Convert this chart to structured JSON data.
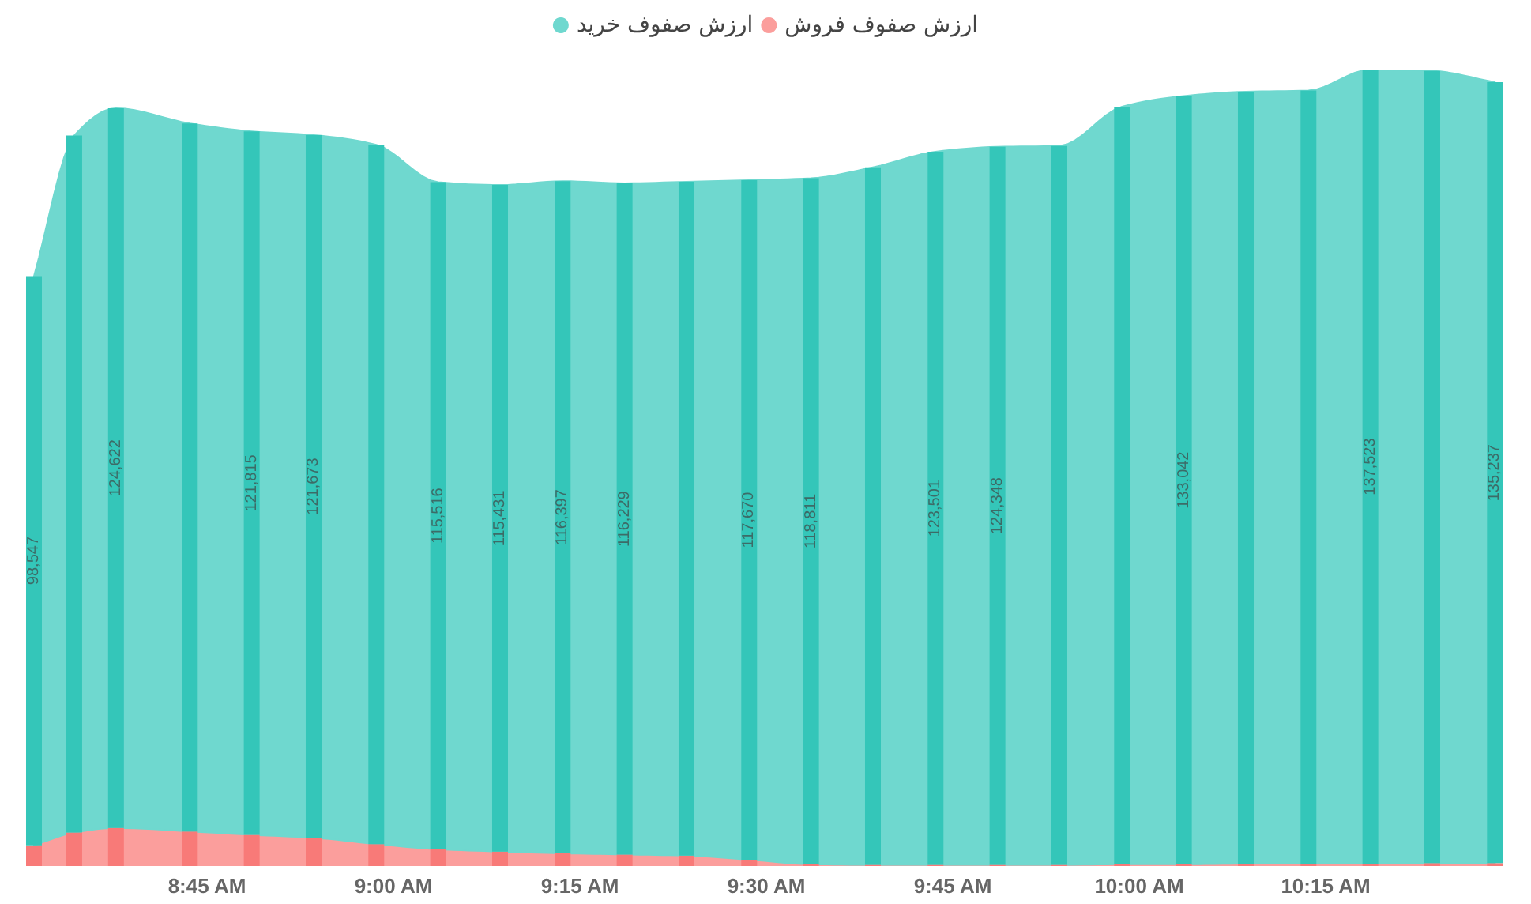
{
  "chart_data": {
    "type": "area",
    "stacked": true,
    "legend": "top",
    "tick_labels": "x",
    "x": [
      8.518,
      8.572,
      8.628,
      8.727,
      8.81,
      8.893,
      8.977,
      9.06,
      9.143,
      9.227,
      9.31,
      9.393,
      9.477,
      9.56,
      9.643,
      9.727,
      9.81,
      9.893,
      9.977,
      10.06,
      10.143,
      10.227,
      10.31,
      10.393,
      10.477
    ],
    "xlim": [
      8.5,
      10.5
    ],
    "xticks": [
      {
        "value": 8.75,
        "label": "8:45 AM"
      },
      {
        "value": 9,
        "label": "9:00 AM"
      },
      {
        "value": 9.25,
        "label": "9:15 AM"
      },
      {
        "value": 9.5,
        "label": "9:30 AM"
      },
      {
        "value": 9.75,
        "label": "9:45 AM"
      },
      {
        "value": 10,
        "label": "10:00 AM"
      },
      {
        "value": 10.25,
        "label": "10:15 AM"
      }
    ],
    "series": [
      {
        "name": "ارزش صفوف فروش",
        "color": "#fb9e9c",
        "values": [
          3600,
          5800,
          6600,
          6000,
          5400,
          4900,
          3800,
          2900,
          2500,
          2200,
          2000,
          1800,
          1100,
          300,
          200,
          200,
          200,
          200,
          300,
          300,
          400,
          400,
          400,
          500,
          500
        ]
      },
      {
        "name": "ارزش صفوف خرید",
        "color": "#6fd8cf",
        "values": [
          98547,
          120700,
          124622,
          122600,
          121815,
          121673,
          121100,
          115516,
          115431,
          116397,
          116229,
          116700,
          117670,
          118811,
          120800,
          123501,
          124348,
          124500,
          131200,
          133042,
          133700,
          133900,
          137523,
          137200,
          135237
        ]
      },
      {
        "type": "bar",
        "color": "#f87a78",
        "values": [
          3600,
          5800,
          6600,
          6000,
          5400,
          4900,
          3800,
          2900,
          2500,
          2200,
          2000,
          1800,
          1100,
          300,
          200,
          200,
          200,
          200,
          300,
          300,
          400,
          400,
          400,
          500,
          500
        ]
      },
      {
        "type": "bar",
        "color": "#34c6b9",
        "values": [
          98547,
          120700,
          124622,
          122600,
          121815,
          121673,
          121100,
          115516,
          115431,
          116397,
          116229,
          116700,
          117670,
          118811,
          120800,
          123501,
          124348,
          124500,
          131200,
          133042,
          133700,
          133900,
          137523,
          137200,
          135237
        ],
        "value_labels": [
          "98,547",
          null,
          "124,622",
          null,
          "121,815",
          "121,673",
          null,
          "115,516",
          "115,431",
          "116,397",
          "116,229",
          null,
          "117,670",
          "118,811",
          null,
          "123,501",
          "124,348",
          null,
          null,
          "133,042",
          null,
          null,
          "137,523",
          null,
          "135,237"
        ]
      }
    ]
  }
}
